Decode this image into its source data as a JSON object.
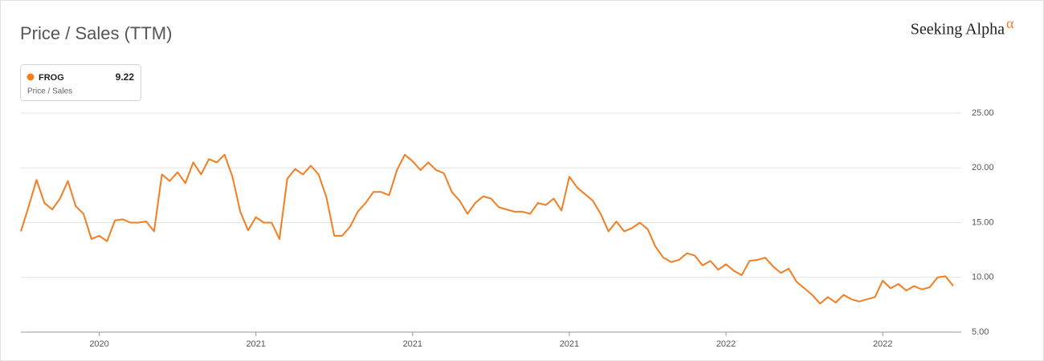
{
  "brand": "Seeking Alpha",
  "brand_mark": "α",
  "chart_data": {
    "type": "line",
    "title": "Price / Sales (TTM)",
    "legend_subtitle": "Price / Sales",
    "categories": [
      null,
      null,
      null,
      null,
      null,
      null,
      null,
      null,
      null,
      null,
      "2020",
      null,
      null,
      null,
      null,
      null,
      null,
      null,
      null,
      null,
      null,
      null,
      null,
      null,
      null,
      null,
      null,
      null,
      null,
      null,
      "2021",
      null,
      null,
      null,
      null,
      null,
      null,
      null,
      null,
      null,
      null,
      null,
      null,
      null,
      null,
      null,
      null,
      null,
      null,
      null,
      "2021",
      null,
      null,
      null,
      null,
      null,
      null,
      null,
      null,
      null,
      null,
      null,
      null,
      null,
      null,
      null,
      null,
      null,
      null,
      null,
      "2021",
      null,
      null,
      null,
      null,
      null,
      null,
      null,
      null,
      null,
      null,
      null,
      null,
      null,
      null,
      null,
      null,
      null,
      null,
      null,
      "2022",
      null,
      null,
      null,
      null,
      null,
      null,
      null,
      null,
      null,
      null,
      null,
      null,
      null,
      null,
      null,
      null,
      null,
      null,
      null,
      "2022",
      null,
      null,
      null,
      null,
      null,
      null,
      null,
      null,
      null
    ],
    "series": [
      {
        "name": "FROG",
        "color": "#f47d20",
        "values": [
          14.2,
          16.5,
          18.9,
          16.8,
          16.2,
          17.2,
          18.8,
          16.5,
          15.8,
          13.5,
          13.8,
          13.3,
          15.2,
          15.3,
          15.0,
          15.0,
          15.1,
          14.2,
          19.4,
          18.8,
          19.6,
          18.6,
          20.5,
          19.4,
          20.8,
          20.5,
          21.2,
          19.2,
          16.0,
          14.3,
          15.5,
          15.0,
          15.0,
          13.5,
          19.0,
          19.9,
          19.4,
          20.2,
          19.4,
          17.3,
          13.8,
          13.8,
          14.6,
          16.0,
          16.8,
          17.8,
          17.8,
          17.5,
          19.8,
          21.2,
          20.6,
          19.8,
          20.5,
          19.8,
          19.5,
          17.8,
          17.0,
          15.8,
          16.8,
          17.4,
          17.2,
          16.4,
          16.2,
          16.0,
          16.0,
          15.8,
          16.8,
          16.6,
          17.2,
          16.1,
          19.2,
          18.2,
          17.6,
          17.0,
          15.8,
          14.2,
          15.1,
          14.2,
          14.5,
          15.0,
          14.4,
          12.8,
          11.8,
          11.4,
          11.6,
          12.2,
          12.0,
          11.1,
          11.5,
          10.7,
          11.2,
          10.6,
          10.2,
          11.5,
          11.6,
          11.8,
          11.0,
          10.4,
          10.8,
          9.6,
          9.0,
          8.4,
          7.6,
          8.2,
          7.7,
          8.4,
          8.0,
          7.8,
          8.0,
          8.2,
          9.7,
          9.0,
          9.4,
          8.8,
          9.2,
          8.9,
          9.1,
          10.0,
          10.1,
          9.22
        ]
      }
    ],
    "ylim": [
      5,
      25
    ],
    "yticks": [
      {
        "value": 5,
        "label": "5.00"
      },
      {
        "value": 10,
        "label": "10.00"
      },
      {
        "value": 15,
        "label": "15.00"
      },
      {
        "value": 20,
        "label": "20.00"
      },
      {
        "value": 25,
        "label": "25.00"
      }
    ],
    "grid": true
  }
}
